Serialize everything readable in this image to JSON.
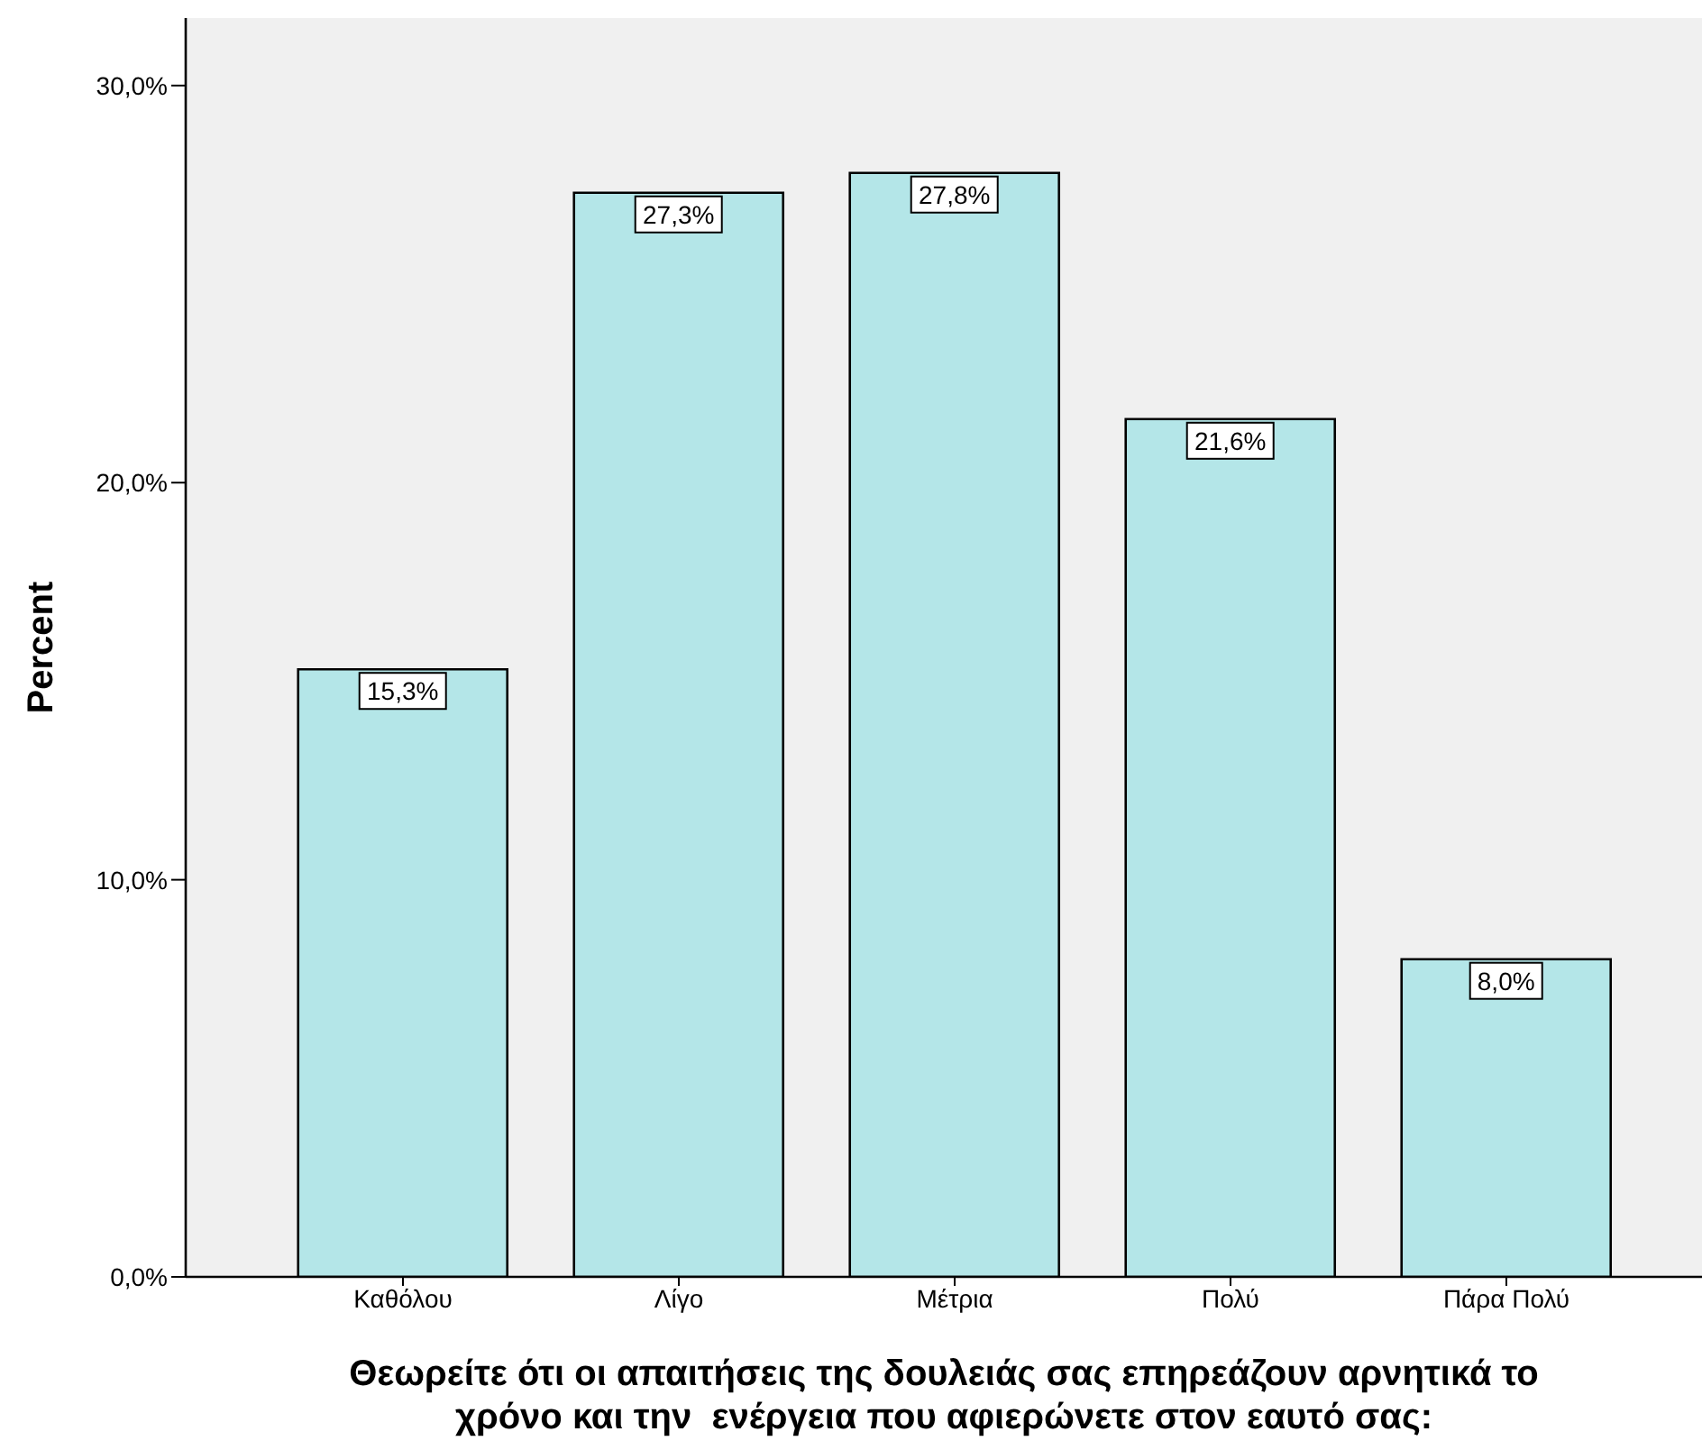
{
  "chart_data": {
    "type": "bar",
    "categories": [
      "Καθόλου",
      "Λίγο",
      "Μέτρια",
      "Πολύ",
      "Πάρα Πολύ"
    ],
    "values": [
      15.3,
      27.3,
      27.8,
      21.6,
      8.0
    ],
    "value_labels": [
      "15,3%",
      "27,3%",
      "27,8%",
      "21,6%",
      "8,0%"
    ],
    "color": "#b4e6e8",
    "ylabel": "Percent",
    "xlabel": "Θεωρείτε ότι οι απαιτήσεις της δουλειάς σας επηρεάζουν αρνητικά το\nχρόνο και την  ενέργεια που αφιερώνετε στον εαυτό σας:",
    "ylim": [
      0,
      31.7
    ],
    "yticks": [
      {
        "value": 0,
        "label": "0,0%"
      },
      {
        "value": 10,
        "label": "10,0%"
      },
      {
        "value": 20,
        "label": "20,0%"
      },
      {
        "value": 30,
        "label": "30,0%"
      }
    ],
    "grid": false,
    "legend": false
  }
}
